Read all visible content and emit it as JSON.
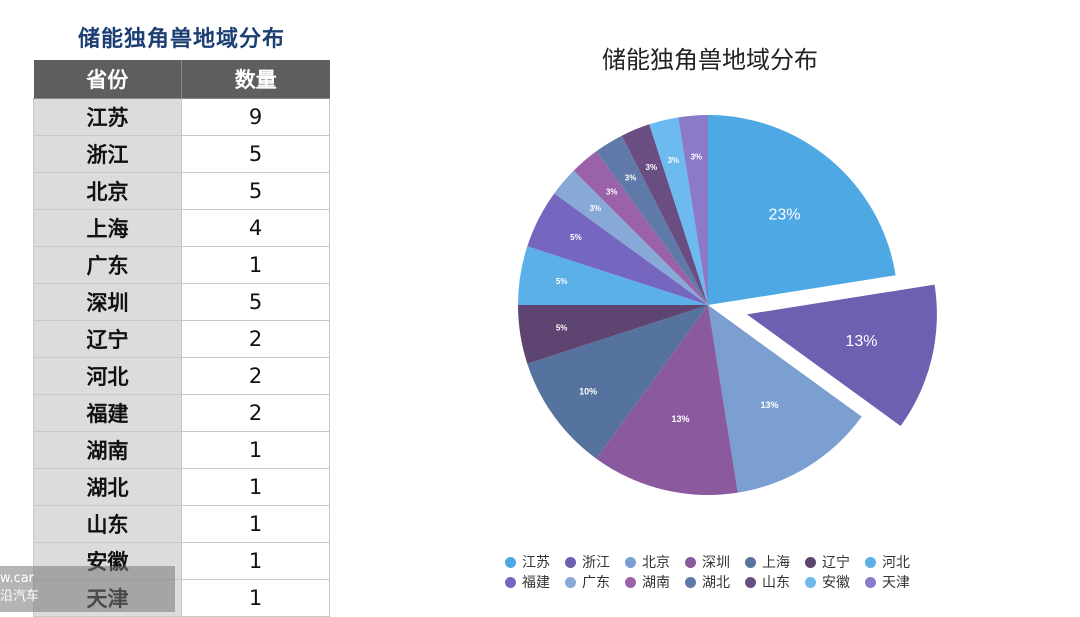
{
  "table": {
    "title": "储能独角兽地域分布",
    "headers": [
      "省份",
      "数量"
    ],
    "rows": [
      [
        "江苏",
        "9"
      ],
      [
        "浙江",
        "5"
      ],
      [
        "北京",
        "5"
      ],
      [
        "上海",
        "4"
      ],
      [
        "广东",
        "1"
      ],
      [
        "深圳",
        "5"
      ],
      [
        "辽宁",
        "2"
      ],
      [
        "河北",
        "2"
      ],
      [
        "福建",
        "2"
      ],
      [
        "湖南",
        "1"
      ],
      [
        "湖北",
        "1"
      ],
      [
        "山东",
        "1"
      ],
      [
        "安徽",
        "1"
      ],
      [
        "天津",
        "1"
      ]
    ]
  },
  "watermark": {
    "line1": "w.car",
    "line2": "沿汽车"
  },
  "chart_data": {
    "type": "pie",
    "title": "储能独角兽地域分布",
    "categories": [
      "江苏",
      "浙江",
      "北京",
      "深圳",
      "上海",
      "辽宁",
      "河北",
      "福建",
      "广东",
      "湖南",
      "湖北",
      "山东",
      "安徽",
      "天津"
    ],
    "values": [
      9,
      5,
      5,
      5,
      4,
      2,
      2,
      2,
      1,
      1,
      1,
      1,
      1,
      1
    ],
    "labels": [
      "23%",
      "13%",
      "13%",
      "13%",
      "10%",
      "5%",
      "5%",
      "5%",
      "3%",
      "3%",
      "3%",
      "3%",
      "3%",
      "3%"
    ],
    "colors": [
      "#4ea8e4",
      "#6e5fb0",
      "#7a9fd0",
      "#8b5a9e",
      "#55739e",
      "#5e4470",
      "#5cb0e8",
      "#7566c0",
      "#88a8d8",
      "#9a62a8",
      "#5f7aa8",
      "#6a4e82",
      "#6cbaf0",
      "#8a7ac8"
    ],
    "exploded": "浙江",
    "legend_position": "bottom"
  }
}
